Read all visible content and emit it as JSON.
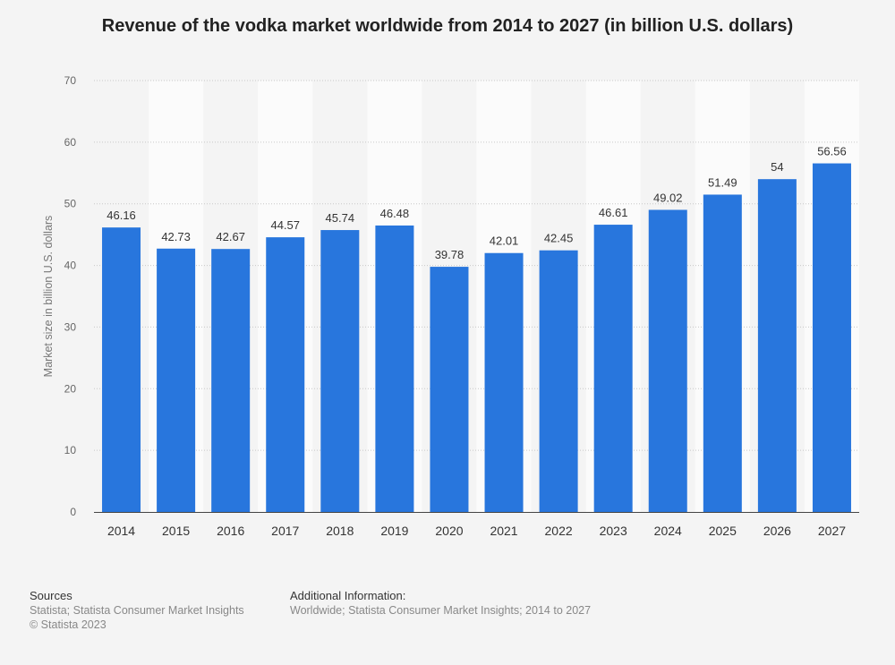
{
  "chart_data": {
    "type": "bar",
    "title": "Revenue of the vodka market worldwide from 2014 to 2027 (in billion U.S. dollars)",
    "xlabel": "",
    "ylabel": "Market size in billion U.S. dollars",
    "categories": [
      "2014",
      "2015",
      "2016",
      "2017",
      "2018",
      "2019",
      "2020",
      "2021",
      "2022",
      "2023",
      "2024",
      "2025",
      "2026",
      "2027"
    ],
    "values": [
      46.16,
      42.73,
      42.67,
      44.57,
      45.74,
      46.48,
      39.78,
      42.01,
      42.45,
      46.61,
      49.02,
      51.49,
      54,
      56.56
    ],
    "value_labels": [
      "46.16",
      "42.73",
      "42.67",
      "44.57",
      "45.74",
      "46.48",
      "39.78",
      "42.01",
      "42.45",
      "46.61",
      "49.02",
      "51.49",
      "54",
      "56.56"
    ],
    "ylim": [
      0,
      70
    ],
    "yticks": [
      0,
      10,
      20,
      30,
      40,
      50,
      60,
      70
    ],
    "grid": true,
    "bar_color": "#2876dd"
  },
  "footer": {
    "sources_heading": "Sources",
    "sources_line1": "Statista; Statista Consumer Market Insights",
    "sources_line2": "© Statista 2023",
    "additional_heading": "Additional Information:",
    "additional_line1": "Worldwide; Statista Consumer Market Insights; 2014 to 2027"
  }
}
